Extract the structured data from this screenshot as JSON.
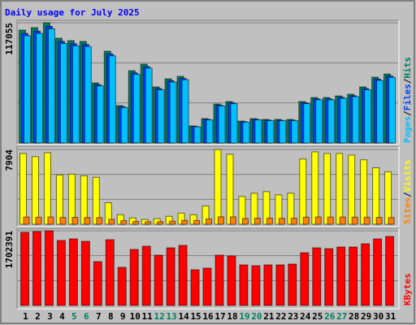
{
  "chart_data": [
    {
      "type": "bar",
      "title": "Daily usage for July 2025",
      "ylim": [
        0,
        117055
      ],
      "yticks": [
        117055
      ],
      "legend_separator": "/",
      "series": [
        {
          "name": "Hits",
          "color": "#00805c",
          "values": [
            109935,
            112306,
            117055,
            102026,
            99653,
            98863,
            58527,
            89372,
            36382,
            70390,
            76718,
            54572,
            62481,
            64854,
            16609,
            23727,
            37963,
            40336,
            21354,
            23727,
            22936,
            22936,
            22936,
            40336,
            44290,
            44290,
            45872,
            47454,
            54572,
            64063,
            67226
          ]
        },
        {
          "name": "Files",
          "color": "#0040ff",
          "values": [
            106637,
            108937,
            113543,
            98965,
            96663,
            95897,
            56771,
            86691,
            35290,
            68278,
            74416,
            52935,
            60607,
            62908,
            16111,
            23015,
            36824,
            39126,
            20713,
            23015,
            22248,
            22248,
            22248,
            39126,
            42961,
            42961,
            44496,
            46030,
            52935,
            62141,
            65209
          ]
        },
        {
          "name": "Pages",
          "color": "#00c0ff",
          "values": [
            104438,
            106691,
            111202,
            96925,
            94670,
            93920,
            55601,
            84903,
            34563,
            66871,
            72882,
            51843,
            59357,
            61611,
            15779,
            22541,
            36065,
            38319,
            20286,
            22541,
            21789,
            21789,
            21789,
            38319,
            42076,
            42076,
            43578,
            45081,
            51843,
            60860,
            63865
          ]
        }
      ]
    },
    {
      "type": "bar",
      "ylim": [
        0,
        7904
      ],
      "yticks": [
        7904
      ],
      "legend_separator": "/",
      "series": [
        {
          "name": "Visits",
          "color": "#ffff00",
          "values": [
            7484,
            7148,
            7568,
            5214,
            5298,
            5129,
            4961,
            2270,
            1009,
            673,
            505,
            589,
            841,
            1177,
            1009,
            1934,
            7904,
            7400,
            2943,
            3280,
            3448,
            3111,
            3280,
            6895,
            7652,
            7484,
            7484,
            7316,
            6811,
            5970,
            5550
          ]
        },
        {
          "name": "Sites",
          "color": "#ff8000",
          "values": [
            760,
            740,
            770,
            720,
            730,
            710,
            700,
            520,
            380,
            290,
            260,
            270,
            330,
            410,
            390,
            560,
            790,
            780,
            610,
            640,
            650,
            620,
            640,
            750,
            770,
            760,
            760,
            750,
            740,
            720,
            710
          ]
        }
      ]
    },
    {
      "type": "bar",
      "ylim": [
        0,
        1702391
      ],
      "yticks": [
        1702391
      ],
      "categories": [
        "1",
        "2",
        "3",
        "4",
        "5",
        "6",
        "7",
        "8",
        "9",
        "10",
        "11",
        "12",
        "13",
        "14",
        "15",
        "16",
        "17",
        "18",
        "19",
        "20",
        "21",
        "22",
        "23",
        "24",
        "25",
        "26",
        "27",
        "28",
        "29",
        "30",
        "31"
      ],
      "category_colors": [
        "#000000",
        "#000000",
        "#000000",
        "#000000",
        "#00805c",
        "#00805c",
        "#000000",
        "#000000",
        "#000000",
        "#000000",
        "#000000",
        "#00805c",
        "#00805c",
        "#000000",
        "#000000",
        "#000000",
        "#000000",
        "#000000",
        "#00805c",
        "#00805c",
        "#000000",
        "#000000",
        "#000000",
        "#000000",
        "#000000",
        "#00805c",
        "#00805c",
        "#000000",
        "#000000",
        "#000000",
        "#000000"
      ],
      "series": [
        {
          "name": "KBytes",
          "color": "#ff0000",
          "values": [
            1665390,
            1683888,
            1702391,
            1480340,
            1517330,
            1461820,
            999230,
            1498830,
            869690,
            1276780,
            1350800,
            1147260,
            1313790,
            1369300,
            814180,
            851190,
            1147260,
            1128760,
            925210,
            906710,
            925210,
            925210,
            943720,
            1202770,
            1313790,
            1295290,
            1332300,
            1332300,
            1406320,
            1517330,
            1572840
          ]
        }
      ]
    }
  ]
}
